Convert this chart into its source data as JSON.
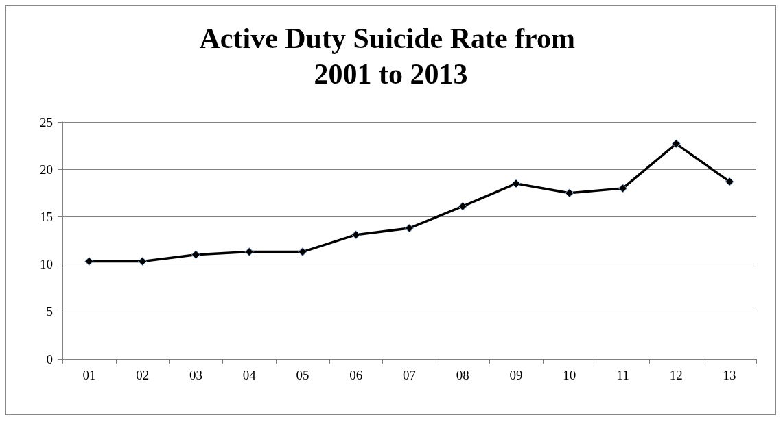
{
  "chart_data": {
    "type": "line",
    "title": "Active Duty Suicide Rate from 2001 to 2013",
    "categories": [
      "01",
      "02",
      "03",
      "04",
      "05",
      "06",
      "07",
      "08",
      "09",
      "10",
      "11",
      "12",
      "13"
    ],
    "series": [
      {
        "color": "#000000",
        "values": [
          10.3,
          10.3,
          11.0,
          11.3,
          11.3,
          13.1,
          13.8,
          16.1,
          18.5,
          17.5,
          18.0,
          22.7,
          18.7
        ]
      }
    ],
    "ylim": [
      0,
      25
    ],
    "yticks": [
      0,
      5,
      10,
      15,
      20,
      25
    ],
    "grid": "y",
    "marker": "diamond",
    "line_style": "solid"
  }
}
